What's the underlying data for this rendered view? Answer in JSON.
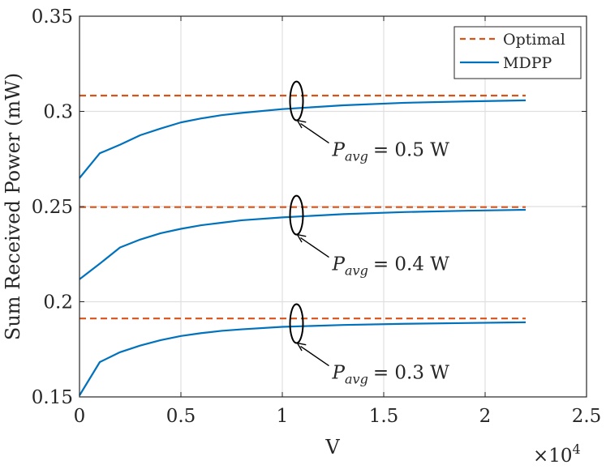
{
  "chart_data": {
    "type": "line",
    "xlabel": "V",
    "ylabel": "Sum Received Power (mW)",
    "xlim": [
      0,
      25000
    ],
    "ylim": [
      0.15,
      0.35
    ],
    "x_exponent": {
      "base": "×10",
      "power": "4"
    },
    "grid": true,
    "legend_position": "top-right",
    "x_ticks": [
      {
        "value": 0,
        "label": "0"
      },
      {
        "value": 5000,
        "label": "0.5"
      },
      {
        "value": 10000,
        "label": "1"
      },
      {
        "value": 15000,
        "label": "1.5"
      },
      {
        "value": 20000,
        "label": "2"
      },
      {
        "value": 25000,
        "label": "2.5"
      }
    ],
    "y_ticks": [
      {
        "value": 0.15,
        "label": "0.15"
      },
      {
        "value": 0.2,
        "label": "0.2"
      },
      {
        "value": 0.25,
        "label": "0.25"
      },
      {
        "value": 0.3,
        "label": "0.3"
      },
      {
        "value": 0.35,
        "label": "0.35"
      }
    ],
    "legend": [
      {
        "name": "Optimal",
        "color": "#d95319",
        "dash": true
      },
      {
        "name": "MDPP",
        "color": "#0072bd",
        "dash": false
      }
    ],
    "groups": [
      {
        "annotation": {
          "symbol": "P",
          "sub": "avg",
          "value": "= 0.5 W"
        },
        "ellipse_at": {
          "x": 10700,
          "y": 0.3055
        },
        "optimal": {
          "x": [
            0,
            22000
          ],
          "y": [
            0.3083,
            0.3083
          ]
        },
        "mdpp": {
          "x": [
            0,
            1000,
            2000,
            3000,
            4000,
            5000,
            6000,
            7000,
            8000,
            10000,
            13000,
            16000,
            19000,
            22000
          ],
          "y": [
            0.265,
            0.278,
            0.2825,
            0.2875,
            0.291,
            0.2942,
            0.2963,
            0.298,
            0.2992,
            0.3012,
            0.3032,
            0.3045,
            0.3052,
            0.3058
          ]
        }
      },
      {
        "annotation": {
          "symbol": "P",
          "sub": "avg",
          "value": "= 0.4 W"
        },
        "ellipse_at": {
          "x": 10700,
          "y": 0.2455
        },
        "optimal": {
          "x": [
            0,
            22000
          ],
          "y": [
            0.2497,
            0.2497
          ]
        },
        "mdpp": {
          "x": [
            0,
            1000,
            2000,
            3000,
            4000,
            5000,
            6000,
            7000,
            8000,
            10000,
            13000,
            16000,
            19000,
            22000
          ],
          "y": [
            0.2118,
            0.22,
            0.2285,
            0.2327,
            0.236,
            0.2383,
            0.2402,
            0.2415,
            0.2428,
            0.2443,
            0.246,
            0.2471,
            0.2478,
            0.2483
          ]
        }
      },
      {
        "annotation": {
          "symbol": "P",
          "sub": "avg",
          "value": "= 0.3 W"
        },
        "ellipse_at": {
          "x": 10700,
          "y": 0.1885
        },
        "optimal": {
          "x": [
            0,
            22000
          ],
          "y": [
            0.1912,
            0.1912
          ]
        },
        "mdpp": {
          "x": [
            0,
            1000,
            2000,
            3000,
            4000,
            5000,
            6000,
            7000,
            8000,
            10000,
            13000,
            16000,
            19000,
            22000
          ],
          "y": [
            0.1508,
            0.1683,
            0.1735,
            0.177,
            0.1798,
            0.182,
            0.1835,
            0.1847,
            0.1855,
            0.1868,
            0.1878,
            0.1884,
            0.1888,
            0.1892
          ]
        }
      }
    ]
  }
}
